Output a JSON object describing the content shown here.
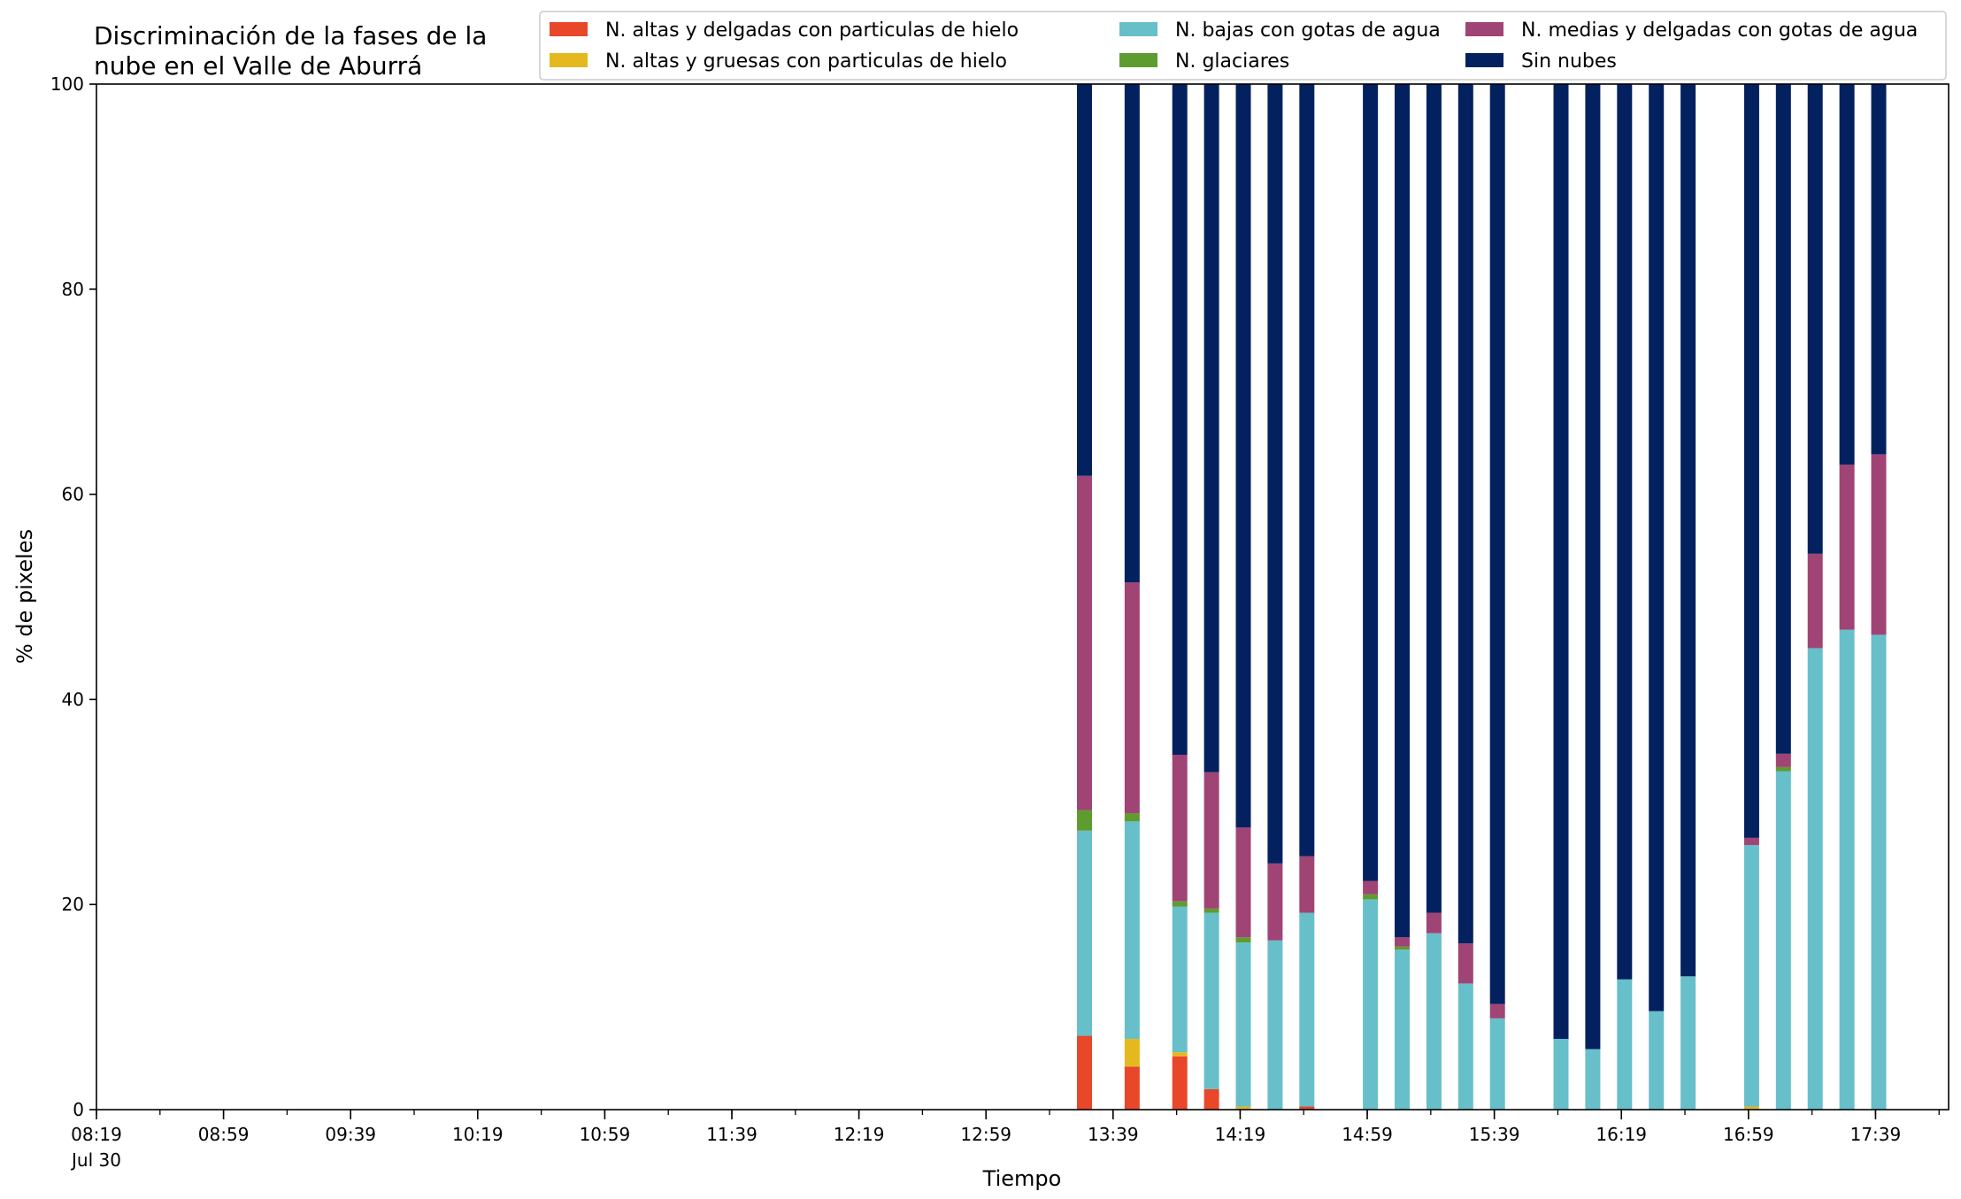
{
  "chart_data": {
    "type": "bar",
    "stacked": true,
    "title_lines": [
      "Discriminación de la fases de la",
      "nube en el Valle de Aburrá"
    ],
    "xlabel": "Tiempo",
    "ylabel": "% de pixeles",
    "ylim": [
      0,
      100
    ],
    "y_ticks": [
      "0",
      "20",
      "40",
      "60",
      "80",
      "100"
    ],
    "x_range": [
      "08:19",
      "18:02"
    ],
    "x_tick_labels": [
      "08:19",
      "08:59",
      "09:39",
      "10:19",
      "10:59",
      "11:39",
      "12:19",
      "12:59",
      "13:39",
      "14:19",
      "14:59",
      "15:39",
      "16:19",
      "16:59",
      "17:39"
    ],
    "x_date_label": "Jul 30",
    "legend_position": "top-right",
    "series": [
      {
        "name": "N. altas y delgadas con particulas de hielo",
        "color": "#e8472a"
      },
      {
        "name": "N. altas y gruesas con particulas de hielo",
        "color": "#e5b81f"
      },
      {
        "name": "N. bajas con gotas de agua",
        "color": "#67bfca"
      },
      {
        "name": "N. glaciares",
        "color": "#5f9c2f"
      },
      {
        "name": "N. medias y delgadas con gotas de agua",
        "color": "#a04475"
      },
      {
        "name": "Sin nubes",
        "color": "#03215f"
      }
    ],
    "bars": [
      {
        "time": "13:30",
        "values": [
          7.2,
          0.0,
          20.0,
          2.0,
          32.6,
          38.2
        ]
      },
      {
        "time": "13:45",
        "values": [
          4.2,
          2.7,
          21.2,
          0.8,
          22.5,
          48.6
        ]
      },
      {
        "time": "14:00",
        "values": [
          5.2,
          0.4,
          14.2,
          0.5,
          14.3,
          65.4
        ]
      },
      {
        "time": "14:10",
        "values": [
          2.0,
          0.0,
          17.2,
          0.4,
          13.3,
          67.1
        ]
      },
      {
        "time": "14:20",
        "values": [
          0.0,
          0.3,
          16.0,
          0.5,
          10.7,
          72.5
        ]
      },
      {
        "time": "14:30",
        "values": [
          0.0,
          0.0,
          16.5,
          0.0,
          7.5,
          76.0
        ]
      },
      {
        "time": "14:40",
        "values": [
          0.3,
          0.0,
          18.9,
          0.0,
          5.5,
          75.3
        ]
      },
      {
        "time": "15:00",
        "values": [
          0.0,
          0.0,
          20.5,
          0.5,
          1.3,
          77.7
        ]
      },
      {
        "time": "15:10",
        "values": [
          0.0,
          0.0,
          15.6,
          0.3,
          0.9,
          83.2
        ]
      },
      {
        "time": "15:20",
        "values": [
          0.0,
          0.0,
          17.2,
          0.0,
          2.0,
          80.8
        ]
      },
      {
        "time": "15:30",
        "values": [
          0.0,
          0.0,
          12.3,
          0.0,
          3.9,
          83.8
        ]
      },
      {
        "time": "15:40",
        "values": [
          0.0,
          0.0,
          8.9,
          0.0,
          1.4,
          89.7
        ]
      },
      {
        "time": "16:00",
        "values": [
          0.0,
          0.0,
          6.9,
          0.0,
          0.0,
          93.1
        ]
      },
      {
        "time": "16:10",
        "values": [
          0.0,
          0.0,
          5.9,
          0.0,
          0.0,
          94.1
        ]
      },
      {
        "time": "16:20",
        "values": [
          0.0,
          0.0,
          12.7,
          0.0,
          0.0,
          87.3
        ]
      },
      {
        "time": "16:30",
        "values": [
          0.0,
          0.0,
          9.6,
          0.0,
          0.0,
          90.4
        ]
      },
      {
        "time": "16:40",
        "values": [
          0.0,
          0.0,
          13.0,
          0.0,
          0.0,
          87.0
        ]
      },
      {
        "time": "17:00",
        "values": [
          0.0,
          0.3,
          25.5,
          0.0,
          0.7,
          73.5
        ]
      },
      {
        "time": "17:10",
        "values": [
          0.0,
          0.0,
          33.0,
          0.4,
          1.3,
          65.3
        ]
      },
      {
        "time": "17:20",
        "values": [
          0.0,
          0.0,
          45.0,
          0.0,
          9.2,
          45.8
        ]
      },
      {
        "time": "17:30",
        "values": [
          0.0,
          0.0,
          46.8,
          0.0,
          16.1,
          37.1
        ]
      },
      {
        "time": "17:40",
        "values": [
          0.0,
          0.0,
          46.3,
          0.0,
          17.6,
          36.1
        ]
      }
    ]
  }
}
